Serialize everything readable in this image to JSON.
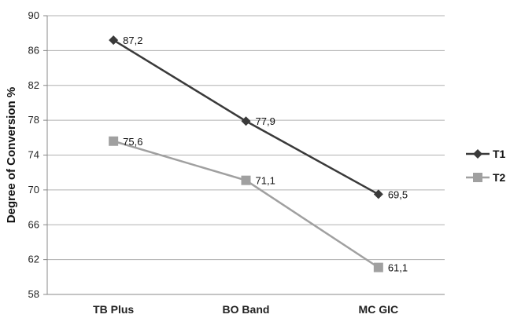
{
  "chart_data": {
    "type": "line",
    "categories": [
      "TB Plus",
      "BO Band",
      "MC GIC"
    ],
    "series": [
      {
        "name": "T1",
        "values": [
          87.2,
          77.9,
          69.5
        ],
        "labels": [
          "87,2",
          "77,9",
          "69,5"
        ],
        "color": "#3a3a3a",
        "marker": "diamond"
      },
      {
        "name": "T2",
        "values": [
          75.6,
          71.1,
          61.1
        ],
        "labels": [
          "75,6",
          "71,1",
          "61,1"
        ],
        "color": "#a0a0a0",
        "marker": "square"
      }
    ],
    "title": "",
    "xlabel": "",
    "ylabel": "Degree of Conversion %",
    "ylim": [
      58,
      90
    ],
    "yticks": [
      58,
      62,
      66,
      70,
      74,
      78,
      82,
      86,
      90
    ],
    "grid": true,
    "legend_position": "right"
  }
}
